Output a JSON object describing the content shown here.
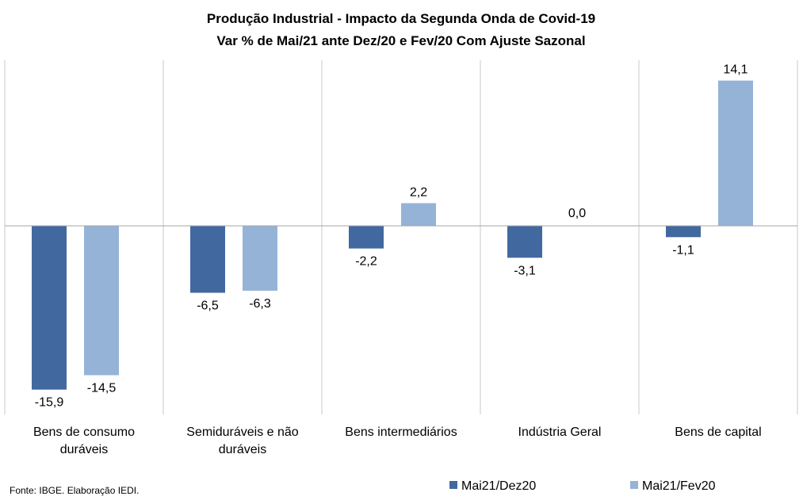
{
  "chart_data": {
    "type": "bar",
    "title": "Produção  Industrial  - Impacto da Segunda Onda de Covid-19",
    "subtitle": "Var % de Mai/21 ante Dez/20 e Fev/20 Com Ajuste Sazonal",
    "categories": [
      [
        "Bens de consumo",
        "duráveis"
      ],
      [
        "Semiduráveis e não",
        "duráveis"
      ],
      [
        "Bens intermediários"
      ],
      [
        "Indústria Geral"
      ],
      [
        "Bens de capital"
      ]
    ],
    "series": [
      {
        "name": "Mai21/Dez20",
        "color": "#4169A0",
        "values": [
          -15.9,
          -6.5,
          -2.2,
          -3.1,
          -1.1
        ],
        "labels": [
          "-15,9",
          "-6,5",
          "-2,2",
          "-3,1",
          "-1,1"
        ]
      },
      {
        "name": "Mai21/Fev20",
        "color": "#95B3D7",
        "values": [
          -14.5,
          -6.3,
          2.2,
          0.0,
          14.1
        ],
        "labels": [
          "-14,5",
          "-6,3",
          "2,2",
          "0,0",
          "14,1"
        ]
      }
    ],
    "ylim": [
      -16.5,
      16.5
    ],
    "grid": "vertical separators",
    "legend": "bottom",
    "source": "Fonte: IBGE. Elaboração IEDI."
  }
}
